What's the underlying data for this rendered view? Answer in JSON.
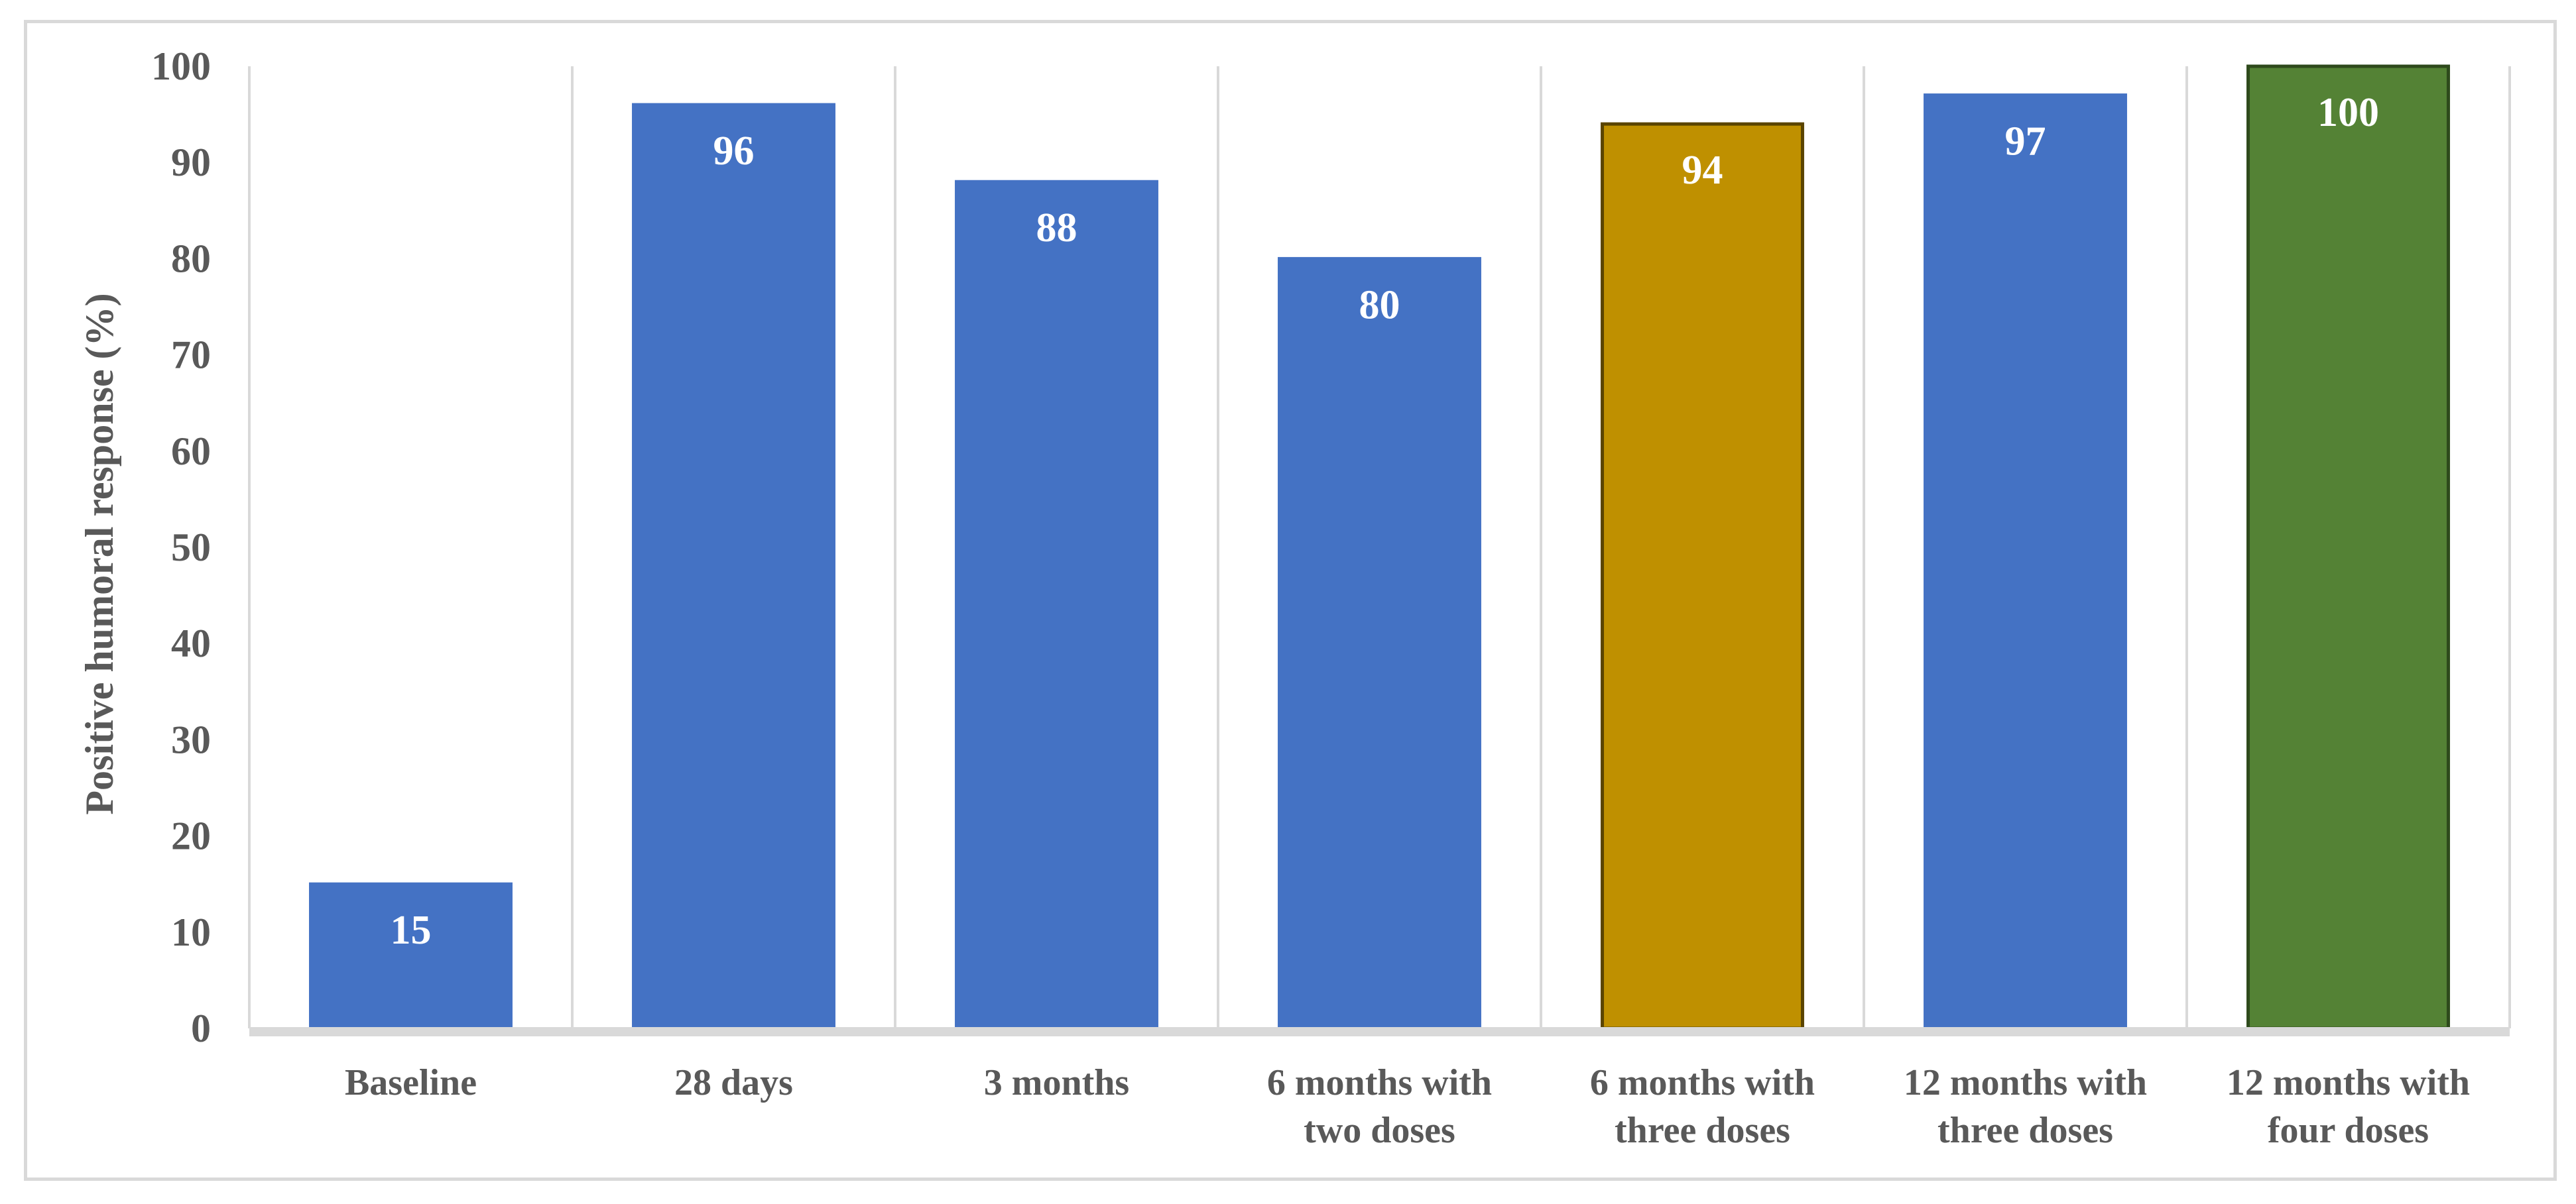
{
  "chart_data": {
    "type": "bar",
    "title": "",
    "xlabel": "",
    "ylabel": "Positive humoral response (%)",
    "ylim": [
      0,
      100
    ],
    "ytick_step": 10,
    "grid": "vertical separators between categories",
    "legend": "none",
    "categories": [
      [
        "Baseline"
      ],
      [
        "28 days"
      ],
      [
        "3 months"
      ],
      [
        "6 months with",
        "two doses"
      ],
      [
        "6 months with",
        "three doses"
      ],
      [
        "12 months with",
        "three doses"
      ],
      [
        "12 months with",
        "four doses"
      ]
    ],
    "values": [
      15,
      96,
      88,
      80,
      94,
      97,
      100
    ],
    "data_labels": [
      "15",
      "96",
      "88",
      "80",
      "94",
      "97",
      "100"
    ],
    "bar_colors": [
      "#4472c4",
      "#4472c4",
      "#4472c4",
      "#4472c4",
      "#bf9000",
      "#4472c4",
      "#548235"
    ],
    "bar_outline_colors": [
      "#4472c4",
      "#4472c4",
      "#4472c4",
      "#4472c4",
      "#5a4400",
      "#4472c4",
      "#2e4a1c"
    ],
    "axis_color": "#d9d9d9",
    "grid_color": "#d9d9d9"
  }
}
